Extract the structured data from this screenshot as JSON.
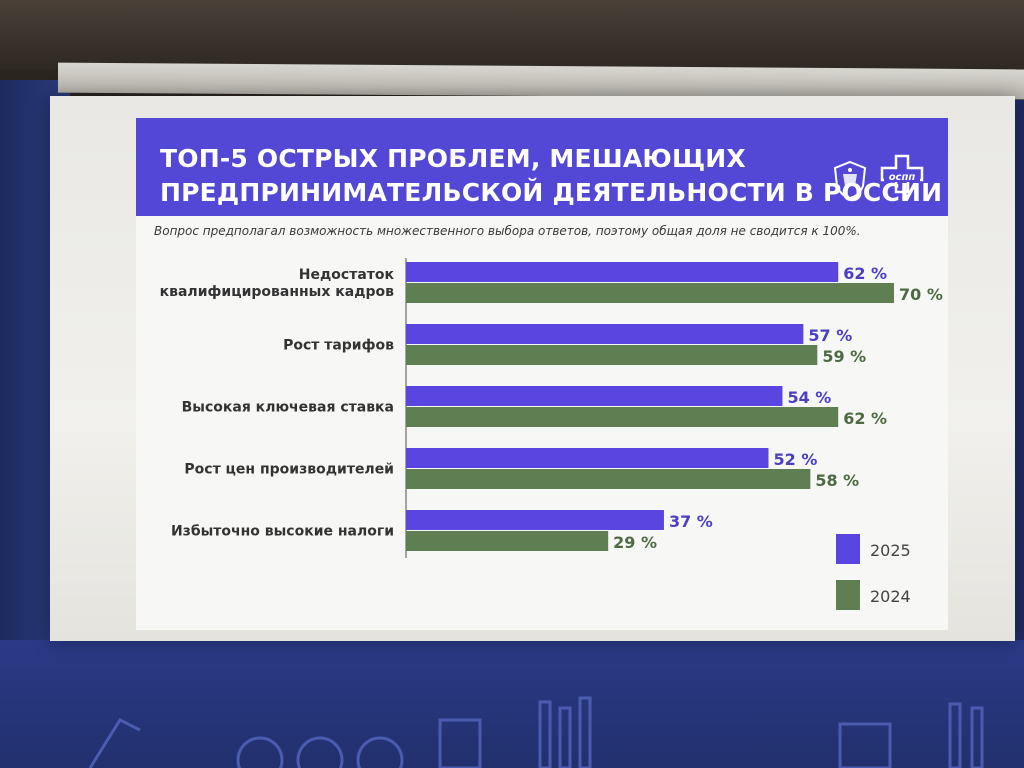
{
  "slide": {
    "title_line1": "ТОП-5 ОСТРЫХ ПРОБЛЕМ, МЕШАЮЩИХ",
    "title_line2": "ПРЕДПРИНИМАТЕЛЬСКОЙ ДЕЯТЕЛЬНОСТИ В РОССИИ",
    "subtitle": "Вопрос предполагал возможность множественного выбора ответов, поэтому общая доля не сводится к 100%.",
    "logo_text": "оспп",
    "title_color": "#5347d6"
  },
  "chart_data": {
    "type": "bar",
    "orientation": "horizontal",
    "categories": [
      [
        "Недостаток",
        "квалифицированных кадров"
      ],
      [
        "Рост тарифов"
      ],
      [
        "Высокая ключевая ставка"
      ],
      [
        "Рост цен производителей"
      ],
      [
        "Избыточно высокие налоги"
      ]
    ],
    "series": [
      {
        "name": "2025",
        "color": "#5a45e0",
        "label_color": "#4b3fc4",
        "values": [
          62,
          57,
          54,
          52,
          37
        ]
      },
      {
        "name": "2024",
        "color": "#5f7f52",
        "label_color": "#4e6a43",
        "values": [
          70,
          59,
          62,
          58,
          29
        ]
      }
    ],
    "value_suffix": " %",
    "xlim": [
      0,
      100
    ],
    "grid": false,
    "legend_position": "bottom-right"
  }
}
